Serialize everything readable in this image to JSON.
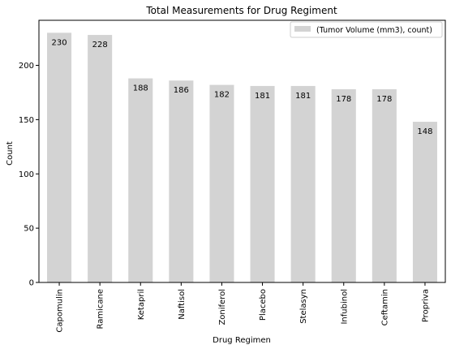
{
  "chart_data": {
    "type": "bar",
    "title": "Total Measurements for Drug Regiment",
    "xlabel": "Drug Regimen",
    "ylabel": "Count",
    "categories": [
      "Capomulin",
      "Ramicane",
      "Ketapril",
      "Naftisol",
      "Zoniferol",
      "Placebo",
      "Stelasyn",
      "Infubinol",
      "Ceftamin",
      "Propriva"
    ],
    "series": [
      {
        "name": "(Tumor Volume (mm3), count)",
        "values": [
          230,
          228,
          188,
          186,
          182,
          181,
          181,
          178,
          178,
          148
        ]
      }
    ],
    "data_labels": [
      "230",
      "228",
      "188",
      "186",
      "182",
      "181",
      "181",
      "178",
      "178",
      "148"
    ],
    "yticks": [
      0,
      50,
      100,
      150,
      200
    ],
    "ylim": [
      0,
      241.5
    ],
    "grid": false,
    "legend_position": "top-right",
    "bar_color": "#d3d3d3"
  }
}
